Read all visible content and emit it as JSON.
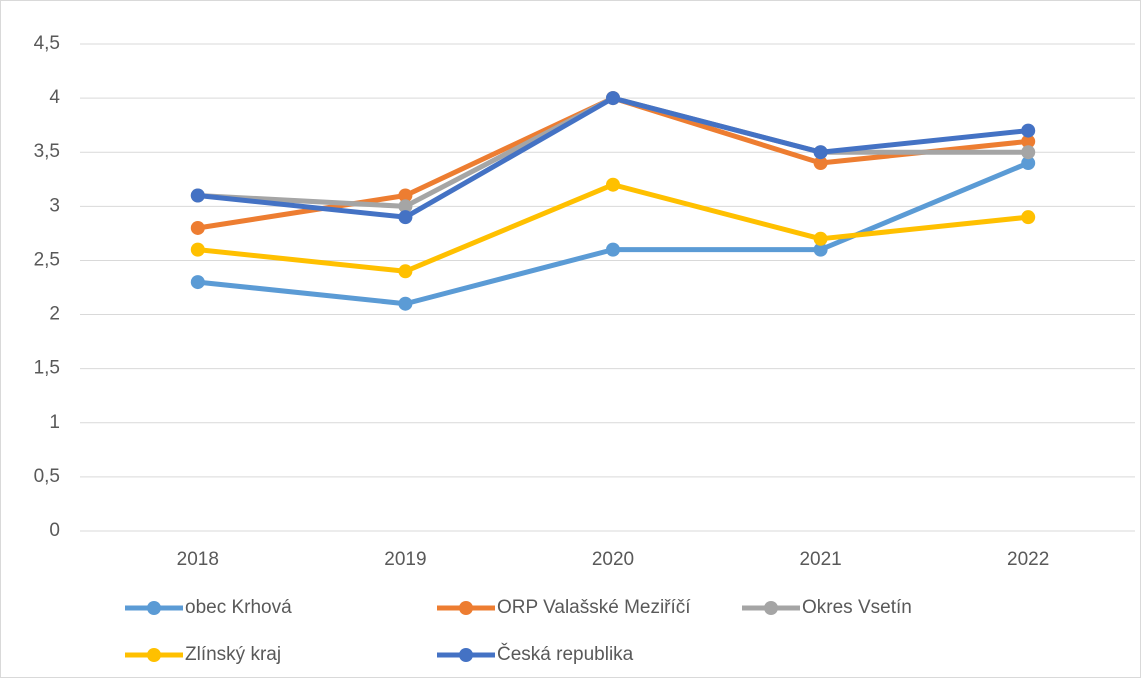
{
  "chart_data": {
    "type": "line",
    "categories": [
      "2018",
      "2019",
      "2020",
      "2021",
      "2022"
    ],
    "series": [
      {
        "name": "obec Krhová",
        "color": "#5b9bd5",
        "values": [
          2.3,
          2.1,
          2.6,
          2.6,
          3.4
        ]
      },
      {
        "name": "ORP Valašské Meziříčí",
        "color": "#ed7d31",
        "values": [
          2.8,
          3.1,
          4.0,
          3.4,
          3.6
        ]
      },
      {
        "name": "Okres Vsetín",
        "color": "#a5a5a5",
        "values": [
          3.1,
          3.0,
          4.0,
          3.5,
          3.5
        ]
      },
      {
        "name": "Zlínský kraj",
        "color": "#ffc000",
        "values": [
          2.6,
          2.4,
          3.2,
          2.7,
          2.9
        ]
      },
      {
        "name": "Česká republika",
        "color": "#4472c4",
        "values": [
          3.1,
          2.9,
          4.0,
          3.5,
          3.7
        ]
      }
    ],
    "ylim": [
      0,
      4.5
    ],
    "yticks": [
      0,
      {
        "value": 0.5,
        "label": "0,5"
      },
      1,
      {
        "value": 1.5,
        "label": "1,5"
      },
      2,
      {
        "value": 2.5,
        "label": "2,5"
      },
      3,
      {
        "value": 3.5,
        "label": "3,5"
      },
      4,
      {
        "value": 4.5,
        "label": "4,5"
      }
    ],
    "grid": true,
    "legend": "bottom"
  }
}
